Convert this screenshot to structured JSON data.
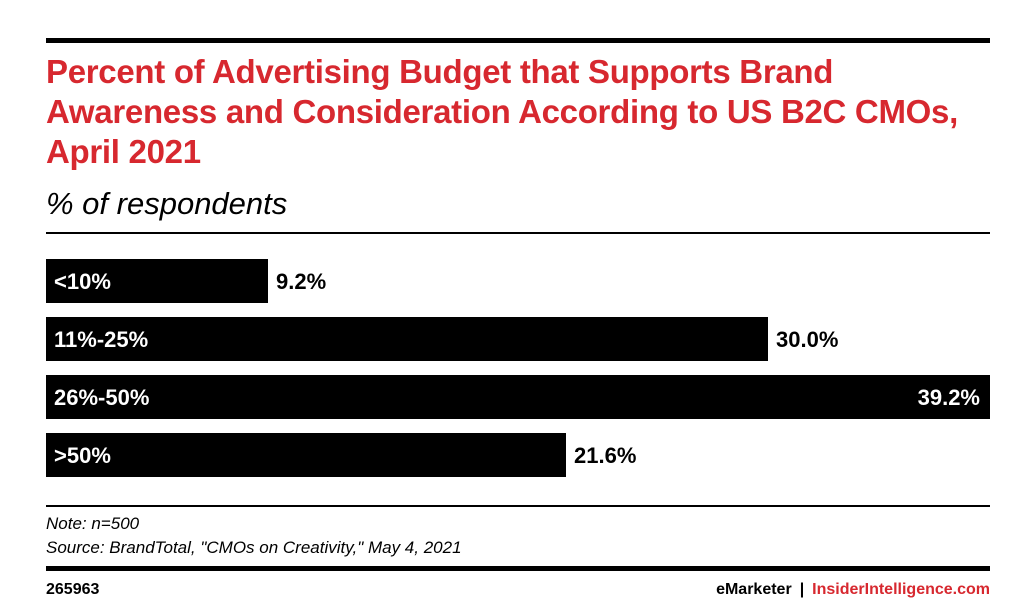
{
  "colors": {
    "accent": "#d7282f",
    "bar": "#000000",
    "text": "#000000",
    "background": "#ffffff"
  },
  "chart_data": {
    "type": "bar",
    "orientation": "horizontal",
    "title": "Percent of Advertising Budget that Supports Brand Awareness and Consideration According to US B2C CMOs, April 2021",
    "subtitle": "% of respondents",
    "categories": [
      "<10%",
      "11%-25%",
      "26%-50%",
      ">50%"
    ],
    "values": [
      9.2,
      30.0,
      39.2,
      21.6
    ],
    "value_labels": [
      "9.2%",
      "30.0%",
      "39.2%",
      "21.6%"
    ],
    "xlabel": "",
    "ylabel": "",
    "xlim": [
      0,
      39.2
    ],
    "grid": false,
    "legend": "none"
  },
  "footer": {
    "note": "Note: n=500",
    "source": "Source: BrandTotal, \"CMOs on Creativity,\" May 4, 2021",
    "chart_id": "265963",
    "brand_primary": "eMarketer",
    "brand_separator": "|",
    "brand_secondary": "InsiderIntelligence.com"
  }
}
